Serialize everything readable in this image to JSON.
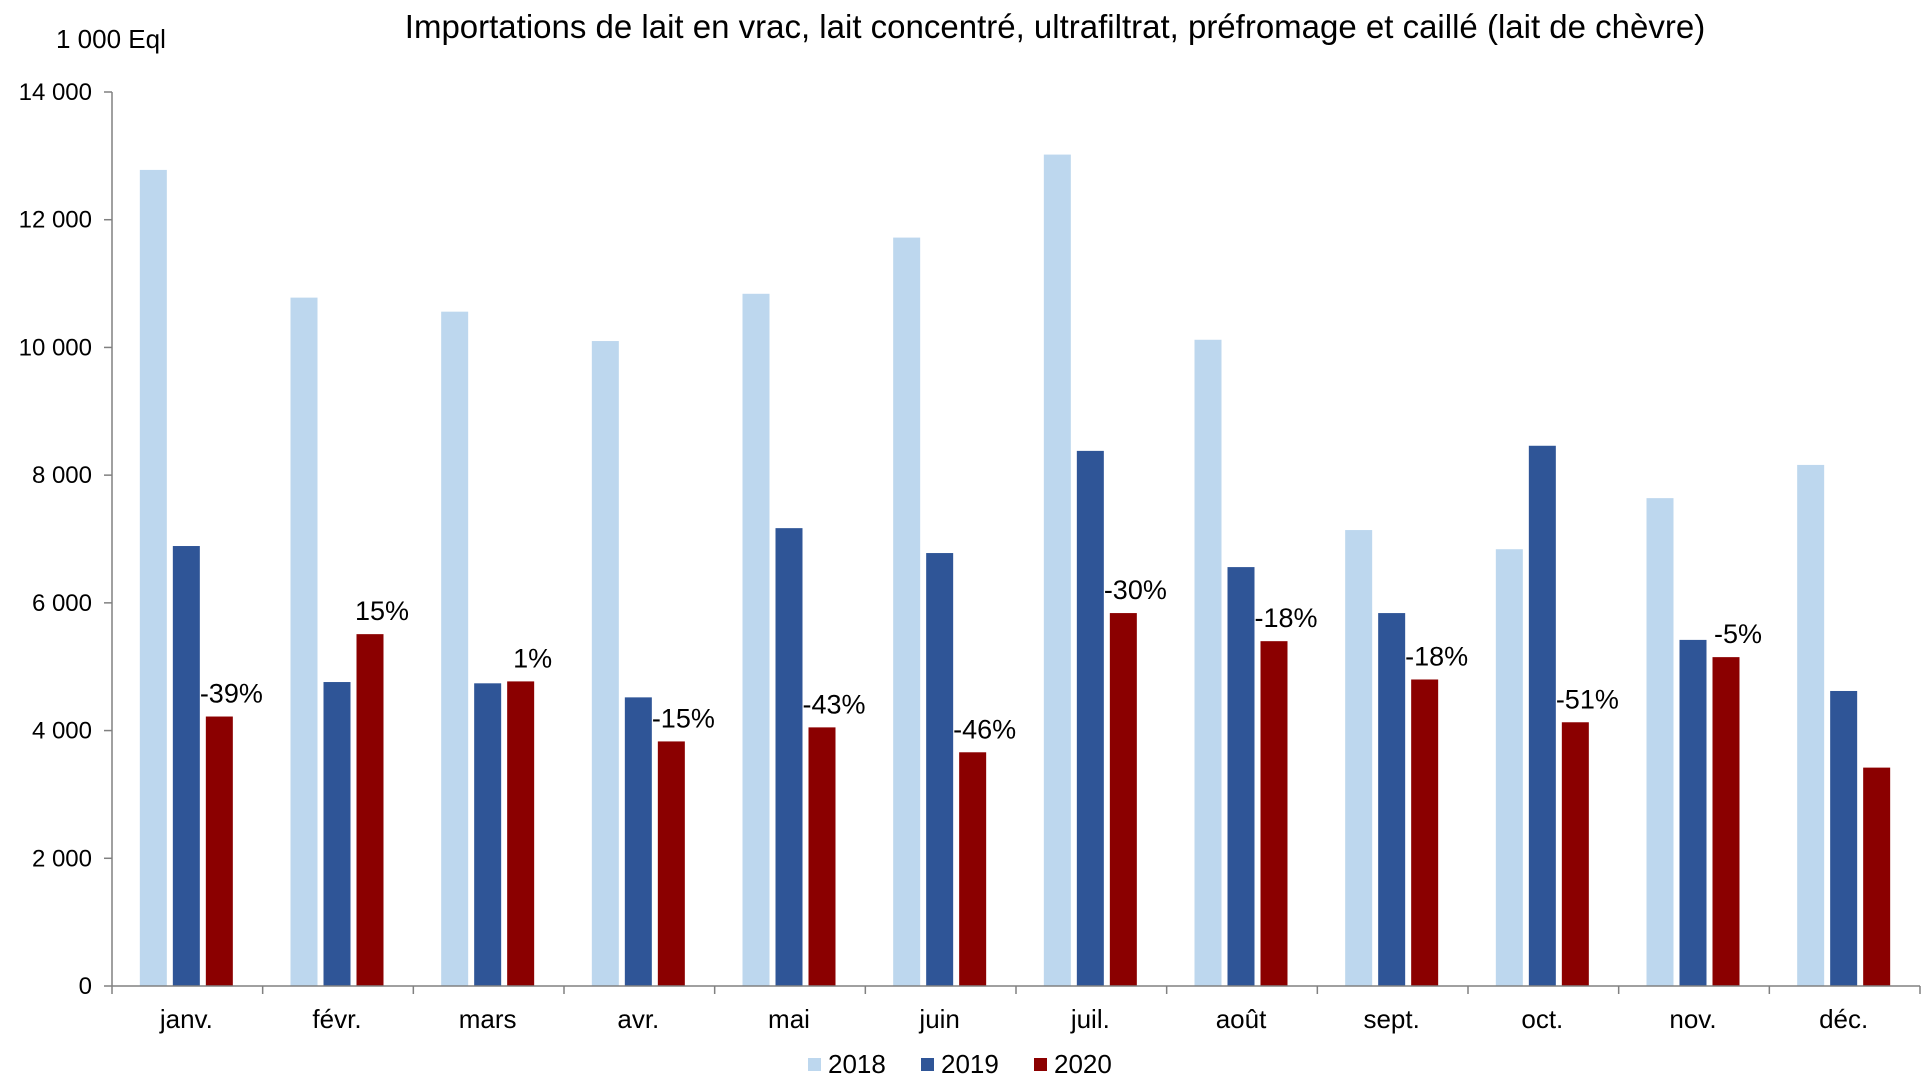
{
  "chart_data": {
    "type": "bar",
    "title": "Importations de lait en vrac, lait concentré, ultrafiltrat, préfromage et caillé (lait de chèvre)",
    "ylabel": "1 000 Eql",
    "xlabel": "",
    "ylim": [
      0,
      14000
    ],
    "yticks": [
      0,
      2000,
      4000,
      6000,
      8000,
      10000,
      12000,
      14000
    ],
    "ytick_labels": [
      "0",
      "2 000",
      "4 000",
      "6 000",
      "8 000",
      "10 000",
      "12 000",
      "14 000"
    ],
    "categories": [
      "janv.",
      "févr.",
      "mars",
      "avr.",
      "mai",
      "juin",
      "juil.",
      "août",
      "sept.",
      "oct.",
      "nov.",
      "déc."
    ],
    "series": [
      {
        "name": "2018",
        "color": "#bdd7ee",
        "values": [
          12780,
          10780,
          10560,
          10100,
          10840,
          11720,
          13020,
          10120,
          7140,
          6840,
          7640,
          8160
        ]
      },
      {
        "name": "2019",
        "color": "#2f5597",
        "values": [
          6890,
          4760,
          4740,
          4520,
          7170,
          6780,
          8380,
          6560,
          5840,
          8460,
          5420,
          4620
        ]
      },
      {
        "name": "2020",
        "color": "#8b0000",
        "values": [
          4220,
          5510,
          4770,
          3830,
          4050,
          3660,
          5840,
          5400,
          4800,
          4130,
          5150,
          3420
        ]
      }
    ],
    "data_labels": [
      "-39%",
      "15%",
      "1%",
      "-15%",
      "-43%",
      "-46%",
      "-30%",
      "-18%",
      "-18%",
      "-51%",
      "-5%",
      ""
    ],
    "legend_position": "bottom",
    "grid": false
  }
}
